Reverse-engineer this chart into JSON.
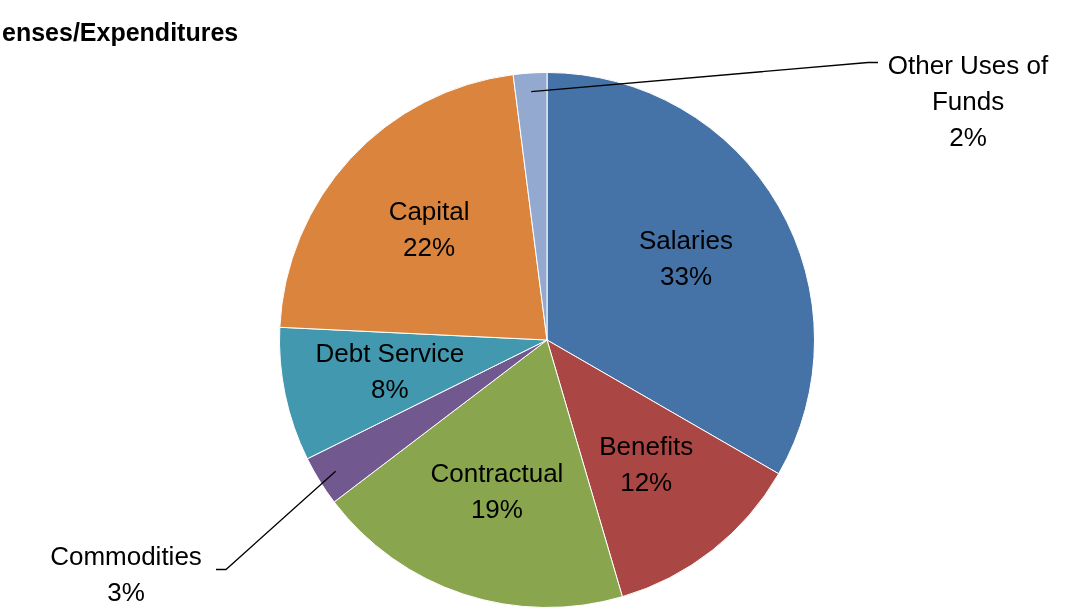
{
  "chart_data": {
    "type": "pie",
    "title": "enses/Expenditures",
    "categories": [
      "Salaries",
      "Benefits",
      "Contractual",
      "Commodities",
      "Debt Service",
      "Capital",
      "Other Uses of Funds"
    ],
    "values": [
      33,
      12,
      19,
      3,
      8,
      22,
      2
    ],
    "value_labels": [
      "33%",
      "12%",
      "19%",
      "3%",
      "8%",
      "22%",
      "2%"
    ],
    "colors": [
      "#4572a7",
      "#aa4643",
      "#89a54e",
      "#71588f",
      "#4198af",
      "#db843d",
      "#93a9cf"
    ],
    "legend": false
  }
}
